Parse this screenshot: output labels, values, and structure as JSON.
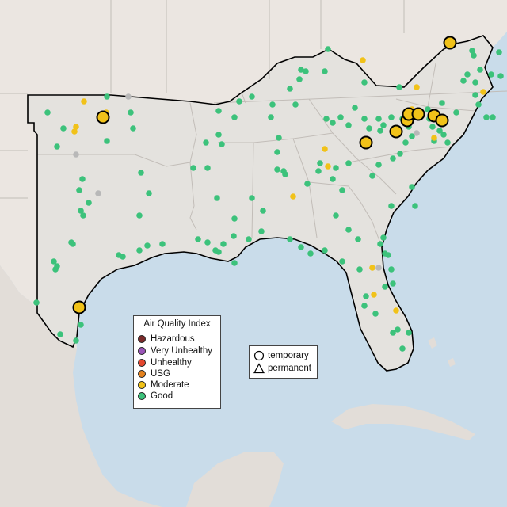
{
  "map": {
    "colors": {
      "water": "#c9dcea",
      "land": "#ebe6e1",
      "region_fill": "#e4e2de",
      "border": "#c2bdb8",
      "outline": "#000000",
      "mexico_relief": "#e2ddd8"
    },
    "aqi_legend": {
      "title": "Air Quality Index",
      "items": [
        {
          "label": "Hazardous",
          "color": "#7b2a2a"
        },
        {
          "label": "Very Unhealthy",
          "color": "#9a55b8"
        },
        {
          "label": "Unhealthy",
          "color": "#e4472f"
        },
        {
          "label": "USG",
          "color": "#e5821e"
        },
        {
          "label": "Moderate",
          "color": "#f1c219"
        },
        {
          "label": "Good",
          "color": "#3cc27b"
        }
      ]
    },
    "shape_legend": {
      "items": [
        {
          "label": "temporary",
          "shape": "circle"
        },
        {
          "label": "permanent",
          "shape": "triangle"
        }
      ]
    },
    "monitor_colors": {
      "good": "#3cc27b",
      "moderate": "#f1c219",
      "no_data": "#b8b8b8"
    }
  }
}
